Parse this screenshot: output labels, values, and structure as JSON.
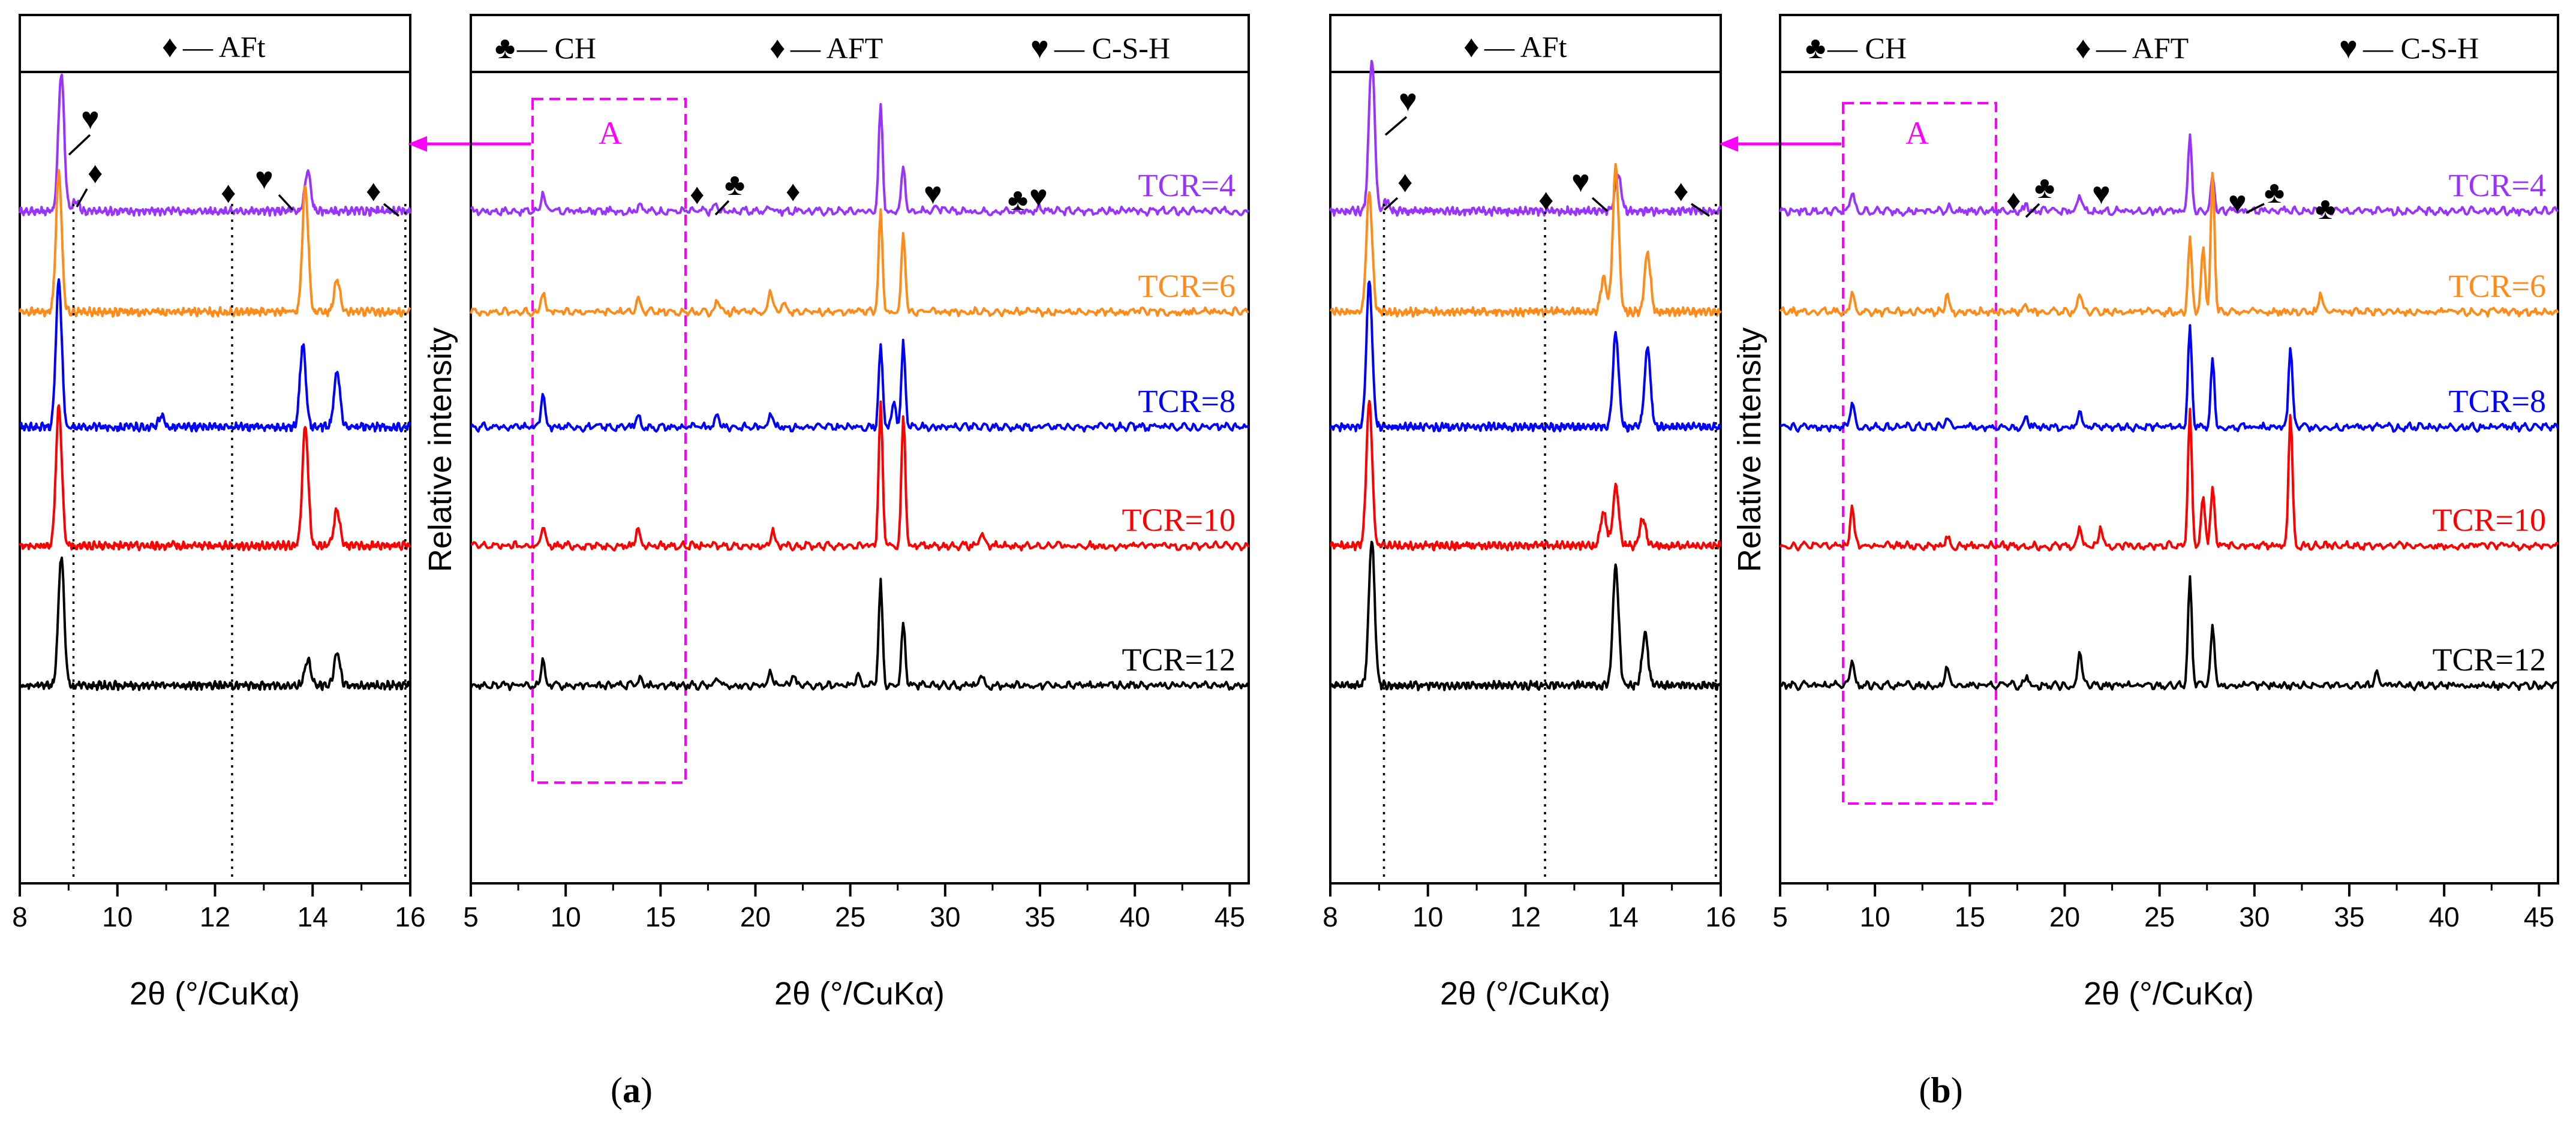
{
  "panels": [
    {
      "id": "a",
      "label": "a",
      "inset": {
        "legend": [
          {
            "symbol": "♦",
            "text": "— AFt"
          }
        ],
        "xlabel": "2θ (°/CuKα)",
        "xlim": [
          8,
          16
        ],
        "xticks": [
          "8",
          "10",
          "12",
          "14",
          "16"
        ],
        "dotted_lines_at": [
          9.1,
          12.35,
          15.9
        ]
      },
      "main": {
        "legend": [
          {
            "symbol": "♣",
            "text": "— CH"
          },
          {
            "symbol": "♦",
            "text": "— AFT"
          },
          {
            "symbol": "♥",
            "text": "— C-S-H"
          }
        ],
        "xlabel": "2θ (°/CuKα)",
        "ylabel": "Relative intensity",
        "xlim": [
          5,
          46
        ],
        "xticks": [
          "5",
          "10",
          "15",
          "20",
          "25",
          "30",
          "35",
          "40",
          "45"
        ],
        "region_label": "A",
        "region_range": [
          8.2,
          16.3
        ]
      }
    },
    {
      "id": "b",
      "label": "b",
      "inset": {
        "legend": [
          {
            "symbol": "♦",
            "text": "— AFt"
          }
        ],
        "xlabel": "2θ (°/CuKα)",
        "xlim": [
          8,
          16
        ],
        "xticks": [
          "8",
          "10",
          "12",
          "14",
          "16"
        ],
        "dotted_lines_at": [
          9.1,
          12.4,
          15.9
        ]
      },
      "main": {
        "legend": [
          {
            "symbol": "♣",
            "text": "— CH"
          },
          {
            "symbol": "♦",
            "text": "— AFT"
          },
          {
            "symbol": "♥",
            "text": "— C-S-H"
          }
        ],
        "xlabel": "2θ (°/CuKα)",
        "ylabel": "Relative intensity",
        "xlim": [
          5,
          46
        ],
        "xticks": [
          "5",
          "10",
          "15",
          "20",
          "25",
          "30",
          "35",
          "40",
          "45"
        ],
        "region_label": "A",
        "region_range": [
          8.2,
          16.3
        ]
      }
    }
  ],
  "colors": {
    "TCR=4": "#9933ff",
    "TCR=6": "#ff8c1a",
    "TCR=8": "#0000ff",
    "TCR=10": "#ff0000",
    "TCR=12": "#000000",
    "highlight": "#ff00ff"
  },
  "chart_data": [
    {
      "panel": "a-main",
      "type": "line",
      "xlabel": "2θ (°/CuKα)",
      "ylabel": "Relative intensity",
      "xlim": [
        5,
        46
      ],
      "yticks": "none",
      "series": [
        {
          "name": "TCR=4",
          "peaks": [
            [
              8.8,
              0.3
            ],
            [
              13.9,
              0.12
            ],
            [
              17.9,
              0.1
            ],
            [
              20.8,
              0.1
            ],
            [
              26.6,
              1.6
            ],
            [
              27.8,
              0.7
            ],
            [
              29.5,
              0.08
            ],
            [
              35.0,
              0.08
            ]
          ]
        },
        {
          "name": "TCR=6",
          "peaks": [
            [
              8.8,
              0.3
            ],
            [
              13.8,
              0.25
            ],
            [
              18.0,
              0.2
            ],
            [
              20.8,
              0.35
            ],
            [
              21.5,
              0.15
            ],
            [
              26.6,
              1.5
            ],
            [
              27.8,
              1.2
            ]
          ]
        },
        {
          "name": "TCR=8",
          "peaks": [
            [
              8.8,
              0.5
            ],
            [
              13.8,
              0.2
            ],
            [
              18.0,
              0.2
            ],
            [
              20.8,
              0.25
            ],
            [
              26.6,
              1.25
            ],
            [
              27.3,
              0.4
            ],
            [
              27.8,
              1.3
            ]
          ]
        },
        {
          "name": "TCR=10",
          "peaks": [
            [
              8.8,
              0.3
            ],
            [
              13.8,
              0.3
            ],
            [
              20.9,
              0.25
            ],
            [
              26.6,
              2.15
            ],
            [
              27.8,
              2.0
            ],
            [
              31.9,
              0.2
            ]
          ]
        },
        {
          "name": "TCR=12",
          "peaks": [
            [
              8.8,
              0.4
            ],
            [
              13.9,
              0.1
            ],
            [
              18.0,
              0.1
            ],
            [
              20.8,
              0.25
            ],
            [
              22.0,
              0.15
            ],
            [
              25.4,
              0.2
            ],
            [
              26.6,
              1.55
            ],
            [
              27.8,
              0.95
            ],
            [
              31.9,
              0.2
            ]
          ]
        }
      ]
    },
    {
      "panel": "a-inset",
      "type": "line",
      "xlabel": "2θ (°/CuKα)",
      "xlim": [
        8,
        16
      ],
      "series": [
        {
          "name": "TCR=4",
          "peaks": [
            [
              8.85,
              2.1
            ],
            [
              13.9,
              0.6
            ],
            [
              9.15,
              0.15
            ]
          ]
        },
        {
          "name": "TCR=6",
          "peaks": [
            [
              8.8,
              2.1
            ],
            [
              13.85,
              1.9
            ],
            [
              14.5,
              0.5
            ]
          ]
        },
        {
          "name": "TCR=8",
          "peaks": [
            [
              8.8,
              2.2
            ],
            [
              13.8,
              1.25
            ],
            [
              14.5,
              0.85
            ],
            [
              10.9,
              0.15
            ]
          ]
        },
        {
          "name": "TCR=10",
          "peaks": [
            [
              8.8,
              2.1
            ],
            [
              13.85,
              1.8
            ],
            [
              14.5,
              0.55
            ]
          ]
        },
        {
          "name": "TCR=12",
          "peaks": [
            [
              8.85,
              1.95
            ],
            [
              13.9,
              0.4
            ],
            [
              14.5,
              0.5
            ]
          ]
        }
      ]
    },
    {
      "panel": "b-main",
      "type": "line",
      "xlabel": "2θ (°/CuKα)",
      "ylabel": "Relative intensity",
      "xlim": [
        5,
        46
      ],
      "series": [
        {
          "name": "TCR=4",
          "peaks": [
            [
              8.8,
              0.3
            ],
            [
              13.9,
              0.08
            ],
            [
              18.0,
              0.1
            ],
            [
              20.8,
              0.25
            ],
            [
              26.6,
              1.15
            ],
            [
              27.8,
              0.55
            ]
          ]
        },
        {
          "name": "TCR=6",
          "peaks": [
            [
              8.8,
              0.3
            ],
            [
              13.8,
              0.3
            ],
            [
              18.0,
              0.1
            ],
            [
              20.8,
              0.3
            ],
            [
              26.6,
              1.1
            ],
            [
              27.3,
              1.0
            ],
            [
              27.8,
              2.1
            ],
            [
              33.5,
              0.3
            ]
          ]
        },
        {
          "name": "TCR=8",
          "peaks": [
            [
              8.8,
              0.4
            ],
            [
              13.8,
              0.15
            ],
            [
              18.0,
              0.15
            ],
            [
              20.8,
              0.3
            ],
            [
              26.6,
              1.55
            ],
            [
              27.8,
              1.0
            ],
            [
              31.9,
              1.25
            ]
          ]
        },
        {
          "name": "TCR=10",
          "peaks": [
            [
              8.8,
              0.6
            ],
            [
              13.8,
              0.15
            ],
            [
              20.8,
              0.3
            ],
            [
              21.9,
              0.3
            ],
            [
              26.6,
              2.05
            ],
            [
              27.3,
              0.75
            ],
            [
              27.8,
              0.9
            ],
            [
              31.9,
              2.05
            ]
          ]
        },
        {
          "name": "TCR=12",
          "peaks": [
            [
              8.8,
              0.4
            ],
            [
              13.8,
              0.3
            ],
            [
              18.0,
              0.15
            ],
            [
              20.8,
              0.55
            ],
            [
              26.6,
              1.6
            ],
            [
              27.8,
              0.9
            ],
            [
              36.4,
              0.2
            ]
          ]
        }
      ]
    },
    {
      "panel": "b-inset",
      "type": "line",
      "xlabel": "2θ (°/CuKα)",
      "xlim": [
        8,
        16
      ],
      "series": [
        {
          "name": "TCR=4",
          "peaks": [
            [
              8.85,
              2.3
            ],
            [
              13.9,
              0.55
            ],
            [
              9.15,
              0.15
            ]
          ]
        },
        {
          "name": "TCR=6",
          "peaks": [
            [
              8.8,
              1.8
            ],
            [
              13.85,
              2.2
            ],
            [
              14.5,
              0.9
            ],
            [
              13.6,
              0.5
            ]
          ]
        },
        {
          "name": "TCR=8",
          "peaks": [
            [
              8.8,
              2.2
            ],
            [
              13.85,
              1.4
            ],
            [
              14.5,
              1.2
            ]
          ]
        },
        {
          "name": "TCR=10",
          "peaks": [
            [
              8.8,
              2.2
            ],
            [
              13.85,
              0.9
            ],
            [
              13.6,
              0.5
            ],
            [
              14.4,
              0.4
            ]
          ]
        },
        {
          "name": "TCR=12",
          "peaks": [
            [
              8.85,
              2.2
            ],
            [
              13.85,
              1.8
            ],
            [
              14.45,
              0.8
            ]
          ]
        }
      ]
    }
  ]
}
